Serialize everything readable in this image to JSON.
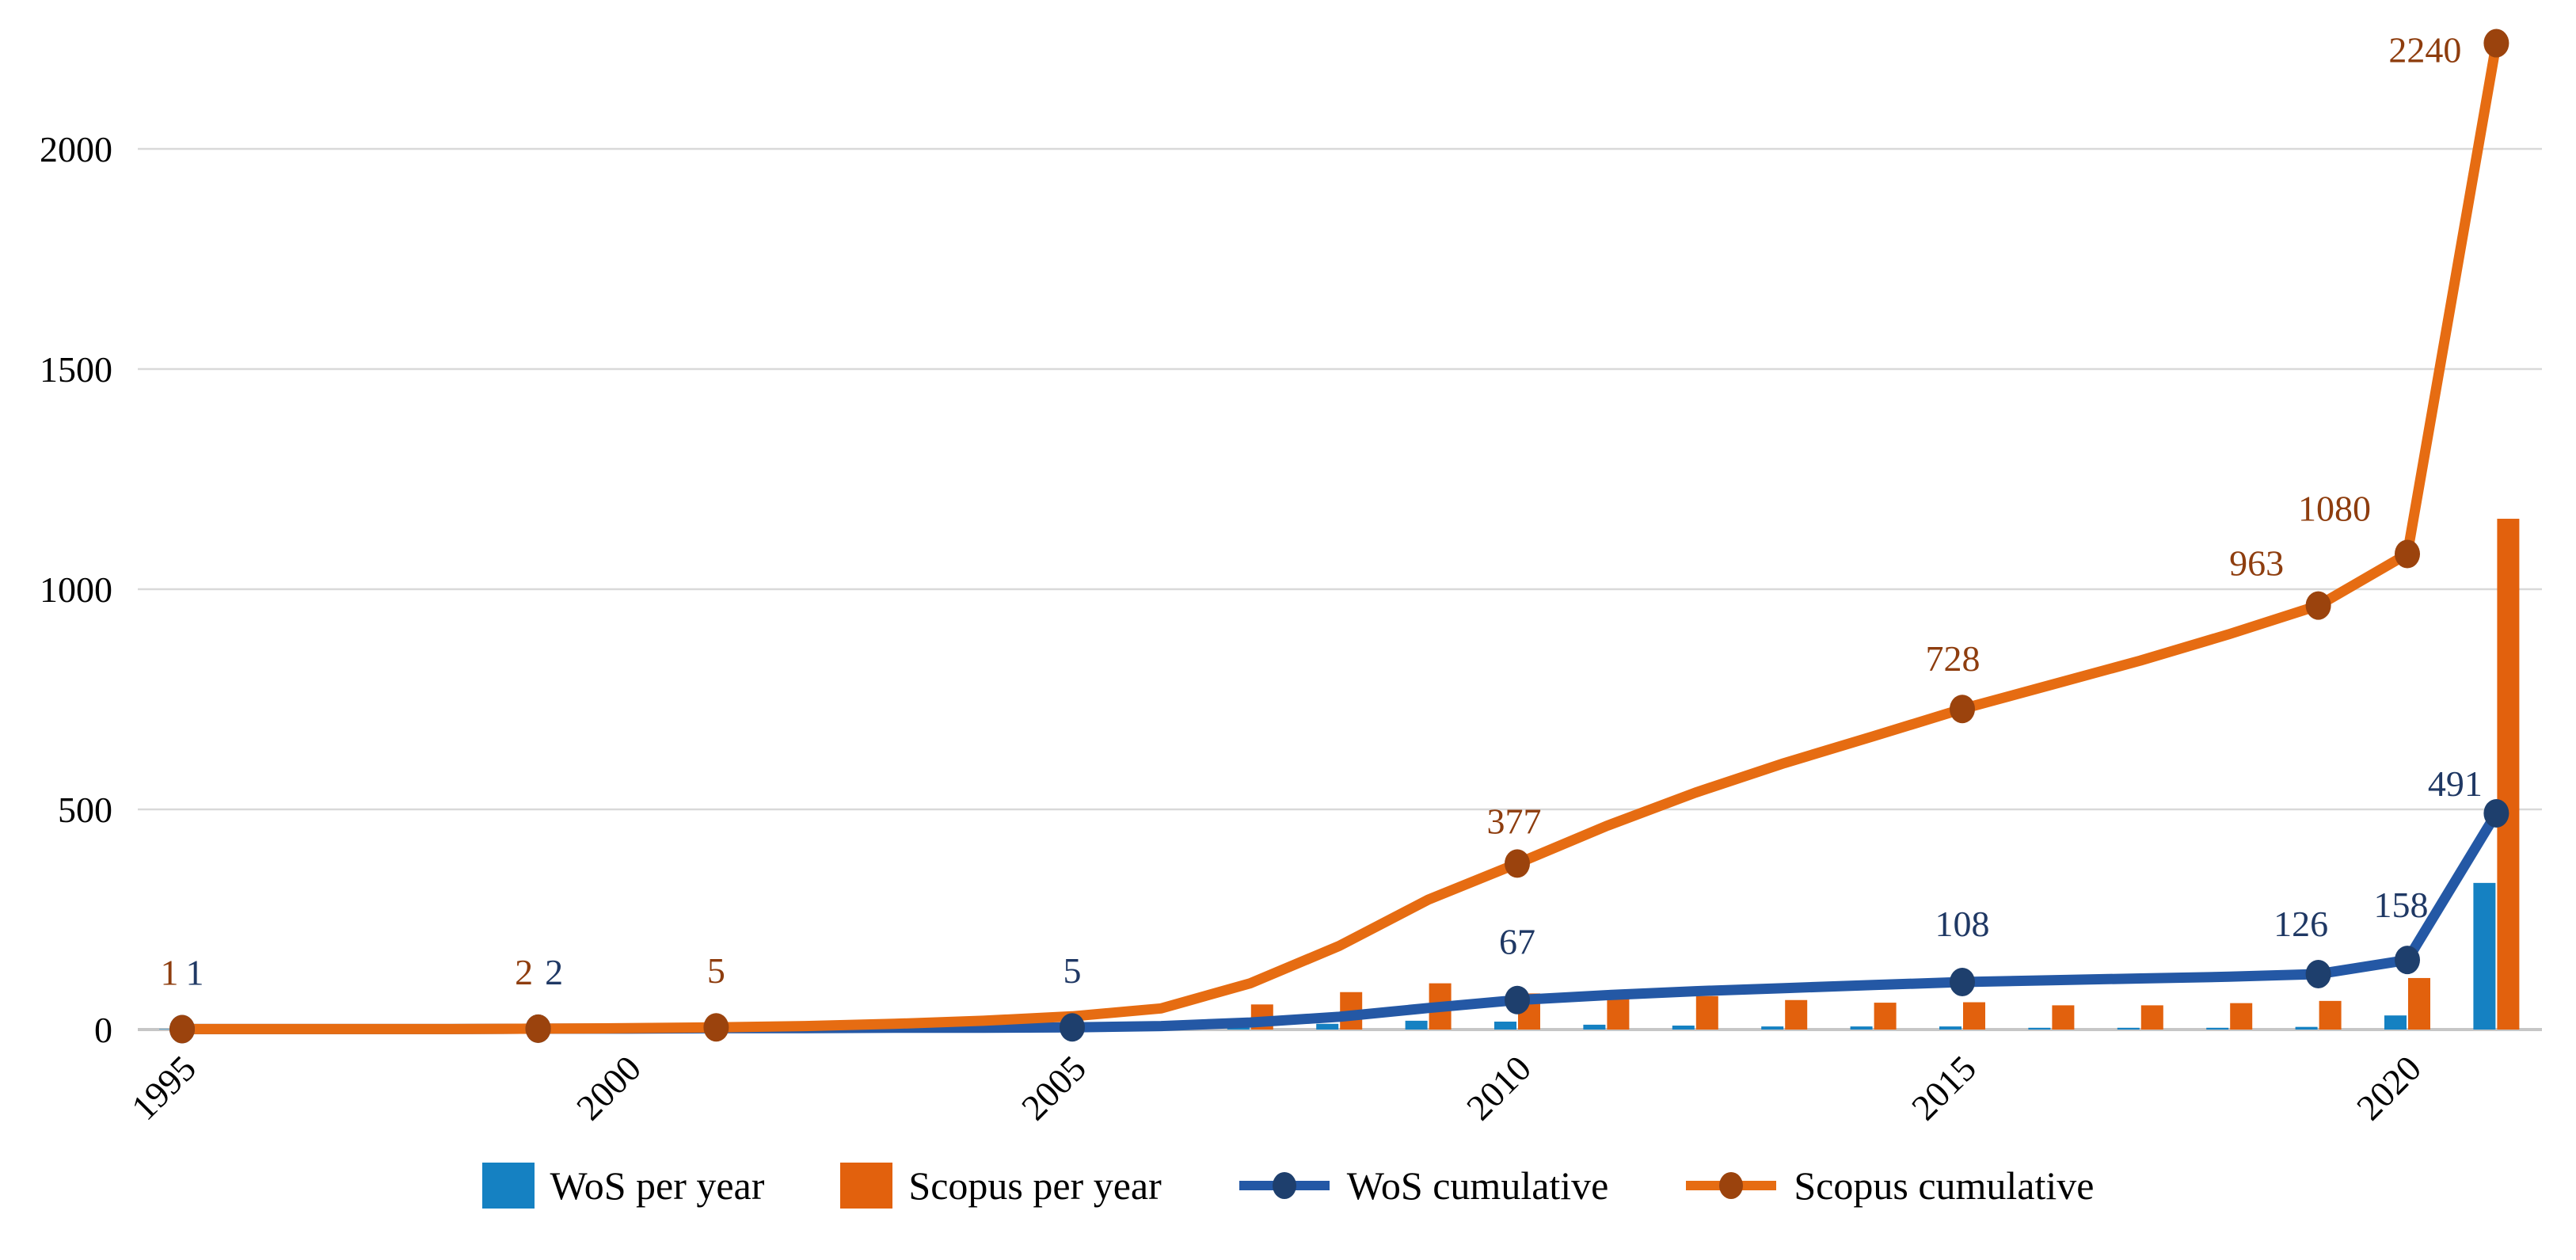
{
  "chart_data": {
    "type": "bar+line combo",
    "title": "",
    "years": [
      1995,
      1996,
      1997,
      1998,
      1999,
      2000,
      2001,
      2002,
      2003,
      2004,
      2005,
      2006,
      2007,
      2008,
      2009,
      2010,
      2011,
      2012,
      2013,
      2014,
      2015,
      2016,
      2017,
      2018,
      2019,
      2020,
      2021
    ],
    "x_tick_years": [
      1995,
      2000,
      2005,
      2010,
      2015,
      2020
    ],
    "y_ticks": [
      0,
      500,
      1000,
      1500,
      2000
    ],
    "ylim": [
      0,
      2240
    ],
    "grid": true,
    "legend_position": "bottom",
    "x_label_rotation": -45,
    "colors": {
      "wos_bar": "#1581c2",
      "scopus_bar": "#e2610d",
      "wos_line": "#2458a5",
      "wos_marker": "#1e3f6d",
      "wos_label": "#1f3864",
      "scopus_line": "#e66c12",
      "scopus_marker": "#9b430d",
      "scopus_label": "#8e3d0e",
      "gridline": "#d9d9d9",
      "baseline": "#c6c6c6",
      "tick_text": "#000000"
    },
    "series": [
      {
        "name": "WoS per year",
        "type": "bar",
        "color": "#1581c2",
        "values": [
          1,
          0,
          0,
          0,
          1,
          0,
          1,
          0,
          1,
          0,
          1,
          3,
          8,
          13,
          20,
          18,
          11,
          9,
          7,
          7,
          7,
          4,
          4,
          4,
          6,
          32,
          333
        ]
      },
      {
        "name": "Scopus per year",
        "type": "bar",
        "color": "#e2610d",
        "values": [
          1,
          0,
          0,
          0,
          1,
          1,
          2,
          3,
          5,
          7,
          10,
          18,
          57,
          85,
          105,
          82,
          85,
          76,
          67,
          61,
          62,
          55,
          55,
          60,
          65,
          117,
          1160
        ]
      },
      {
        "name": "WoS cumulative",
        "type": "line",
        "color": "#2458a5",
        "marker_color": "#1e3f6d",
        "label_color": "#1f3864",
        "values": [
          1,
          1,
          1,
          1,
          2,
          2,
          3,
          3,
          4,
          4,
          5,
          8,
          16,
          29,
          49,
          67,
          78,
          87,
          94,
          101,
          108,
          112,
          116,
          120,
          126,
          158,
          491
        ],
        "markers": [
          {
            "year": 1995,
            "value": 1,
            "label": "1",
            "dx": 16,
            "dy": -56
          },
          {
            "year": 1999,
            "value": 2,
            "label": "2",
            "dx": 20,
            "dy": -56
          },
          {
            "year": 2005,
            "value": 5,
            "label": "5",
            "dx": 0,
            "dy": -56
          },
          {
            "year": 2010,
            "value": 67,
            "label": "67",
            "dx": 0,
            "dy": -58
          },
          {
            "year": 2015,
            "value": 108,
            "label": "108",
            "dx": 0,
            "dy": -58
          },
          {
            "year": 2019,
            "value": 126,
            "label": "126",
            "dx": -22,
            "dy": -48
          },
          {
            "year": 2020,
            "value": 158,
            "label": "158",
            "dx": -8,
            "dy": -54
          },
          {
            "year": 2021,
            "value": 491,
            "label": "491",
            "dx": -52,
            "dy": -22
          }
        ]
      },
      {
        "name": "Scopus cumulative",
        "type": "line",
        "color": "#e66c12",
        "marker_color": "#9b430d",
        "label_color": "#8e3d0e",
        "values": [
          1,
          1,
          1,
          1,
          2,
          3,
          5,
          8,
          13,
          20,
          30,
          48,
          105,
          190,
          295,
          377,
          462,
          538,
          605,
          666,
          728,
          783,
          838,
          898,
          963,
          1080,
          2240
        ],
        "markers": [
          {
            "year": 1995,
            "value": 1,
            "label": "1",
            "dx": -16,
            "dy": -56
          },
          {
            "year": 1999,
            "value": 2,
            "label": "2",
            "dx": -18,
            "dy": -56
          },
          {
            "year": 2001,
            "value": 5,
            "label": "5",
            "dx": 0,
            "dy": -56
          },
          {
            "year": 2010,
            "value": 377,
            "label": "377",
            "dx": -4,
            "dy": -38
          },
          {
            "year": 2015,
            "value": 728,
            "label": "728",
            "dx": -12,
            "dy": -48
          },
          {
            "year": 2019,
            "value": 963,
            "label": "963",
            "dx": -78,
            "dy": -38
          },
          {
            "year": 2020,
            "value": 1080,
            "label": "1080",
            "dx": -92,
            "dy": -42
          },
          {
            "year": 2021,
            "value": 2240,
            "label": "2240",
            "dx": -90,
            "dy": 24
          }
        ]
      }
    ]
  },
  "legend": {
    "items": [
      {
        "label": "WoS per year",
        "swatch": "bar",
        "color": "#1581c2"
      },
      {
        "label": "Scopus per year",
        "swatch": "bar",
        "color": "#e2610d"
      },
      {
        "label": "WoS cumulative",
        "swatch": "line",
        "color": "#2458a5",
        "marker_color": "#1e3f6d"
      },
      {
        "label": "Scopus cumulative",
        "swatch": "line",
        "color": "#e66c12",
        "marker_color": "#9b430d"
      }
    ]
  }
}
